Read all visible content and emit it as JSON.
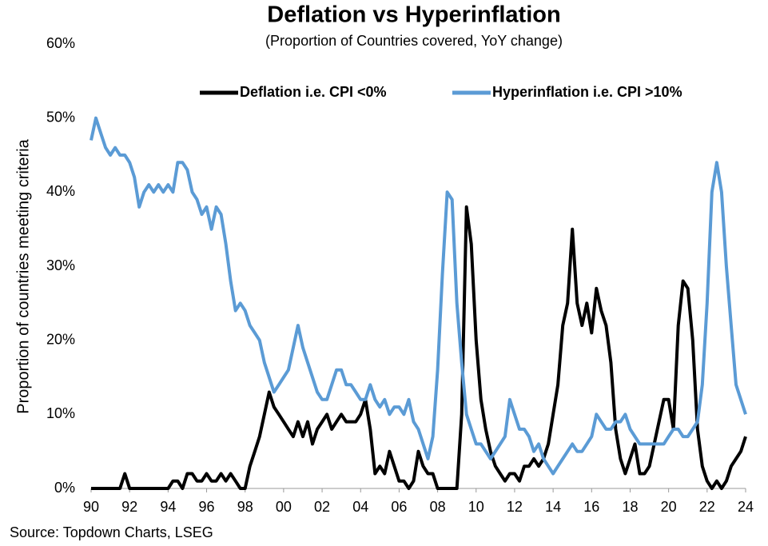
{
  "chart_data": {
    "type": "line",
    "title": "Deflation vs Hyperinflation",
    "subtitle": "(Proportion of Countries covered, YoY change)",
    "y_label": "Proportion of countries meeting criteria",
    "source": "Source: Topdown Charts, LSEG",
    "legend_position": "top",
    "x": [
      1990,
      1990.25,
      1990.5,
      1990.75,
      1991,
      1991.25,
      1991.5,
      1991.75,
      1992,
      1992.25,
      1992.5,
      1992.75,
      1993,
      1993.25,
      1993.5,
      1993.75,
      1994,
      1994.25,
      1994.5,
      1994.75,
      1995,
      1995.25,
      1995.5,
      1995.75,
      1996,
      1996.25,
      1996.5,
      1996.75,
      1997,
      1997.25,
      1997.5,
      1997.75,
      1998,
      1998.25,
      1998.5,
      1998.75,
      1999,
      1999.25,
      1999.5,
      1999.75,
      2000,
      2000.25,
      2000.5,
      2000.75,
      2001,
      2001.25,
      2001.5,
      2001.75,
      2002,
      2002.25,
      2002.5,
      2002.75,
      2003,
      2003.25,
      2003.5,
      2003.75,
      2004,
      2004.25,
      2004.5,
      2004.75,
      2005,
      2005.25,
      2005.5,
      2005.75,
      2006,
      2006.25,
      2006.5,
      2006.75,
      2007,
      2007.25,
      2007.5,
      2007.75,
      2008,
      2008.25,
      2008.5,
      2008.75,
      2009,
      2009.25,
      2009.5,
      2009.75,
      2010,
      2010.25,
      2010.5,
      2010.75,
      2011,
      2011.25,
      2011.5,
      2011.75,
      2012,
      2012.25,
      2012.5,
      2012.75,
      2013,
      2013.25,
      2013.5,
      2013.75,
      2014,
      2014.25,
      2014.5,
      2014.75,
      2015,
      2015.25,
      2015.5,
      2015.75,
      2016,
      2016.25,
      2016.5,
      2016.75,
      2017,
      2017.25,
      2017.5,
      2017.75,
      2018,
      2018.25,
      2018.5,
      2018.75,
      2019,
      2019.25,
      2019.5,
      2019.75,
      2020,
      2020.25,
      2020.5,
      2020.75,
      2021,
      2021.25,
      2021.5,
      2021.75,
      2022,
      2022.25,
      2022.5,
      2022.75,
      2023,
      2023.25,
      2023.5,
      2023.75,
      2024
    ],
    "series": [
      {
        "name": "Deflation i.e. CPI <0%",
        "color": "#000000",
        "values": [
          0,
          0,
          0,
          0,
          0,
          0,
          0,
          2,
          0,
          0,
          0,
          0,
          0,
          0,
          0,
          0,
          0,
          1,
          1,
          0,
          2,
          2,
          1,
          1,
          2,
          1,
          1,
          2,
          1,
          2,
          1,
          0,
          0,
          3,
          5,
          7,
          10,
          13,
          11,
          10,
          9,
          8,
          7,
          9,
          7,
          9,
          6,
          8,
          9,
          10,
          8,
          9,
          10,
          9,
          9,
          9,
          10,
          12,
          8,
          2,
          3,
          2,
          5,
          3,
          1,
          1,
          0,
          1,
          5,
          3,
          2,
          2,
          0,
          0,
          0,
          0,
          0,
          10,
          38,
          33,
          20,
          12,
          8,
          5,
          3,
          2,
          1,
          2,
          2,
          1,
          3,
          3,
          4,
          3,
          4,
          6,
          10,
          14,
          22,
          25,
          35,
          25,
          22,
          25,
          21,
          27,
          24,
          22,
          17,
          8,
          4,
          2,
          4,
          6,
          2,
          2,
          3,
          6,
          9,
          12,
          12,
          8,
          22,
          28,
          27,
          20,
          8,
          3,
          1,
          0,
          1,
          0,
          1,
          3,
          4,
          5,
          7
        ]
      },
      {
        "name": "Hyperinflation i.e. CPI >10%",
        "color": "#5b9bd5",
        "values": [
          47,
          50,
          48,
          46,
          45,
          46,
          45,
          45,
          44,
          42,
          38,
          40,
          41,
          40,
          41,
          40,
          41,
          40,
          44,
          44,
          43,
          40,
          39,
          37,
          38,
          35,
          38,
          37,
          33,
          28,
          24,
          25,
          24,
          22,
          21,
          20,
          17,
          15,
          13,
          14,
          15,
          16,
          19,
          22,
          19,
          17,
          15,
          13,
          12,
          12,
          14,
          16,
          16,
          14,
          14,
          13,
          12,
          12,
          14,
          12,
          11,
          12,
          10,
          11,
          11,
          10,
          12,
          9,
          8,
          6,
          4,
          7,
          16,
          29,
          40,
          39,
          25,
          17,
          10,
          8,
          6,
          6,
          5,
          4,
          5,
          6,
          7,
          12,
          10,
          8,
          8,
          7,
          5,
          6,
          4,
          3,
          2,
          3,
          4,
          5,
          6,
          5,
          5,
          6,
          7,
          10,
          9,
          8,
          8,
          9,
          9,
          10,
          8,
          7,
          6,
          6,
          6,
          6,
          6,
          6,
          7,
          8,
          8,
          7,
          7,
          8,
          9,
          14,
          25,
          40,
          44,
          40,
          30,
          22,
          14,
          12,
          10
        ]
      }
    ],
    "xlim": [
      1990,
      2024
    ],
    "xticks": [
      {
        "value": 1990,
        "label": "90"
      },
      {
        "value": 1992,
        "label": "92"
      },
      {
        "value": 1994,
        "label": "94"
      },
      {
        "value": 1996,
        "label": "96"
      },
      {
        "value": 1998,
        "label": "98"
      },
      {
        "value": 2000,
        "label": "00"
      },
      {
        "value": 2002,
        "label": "02"
      },
      {
        "value": 2004,
        "label": "04"
      },
      {
        "value": 2006,
        "label": "06"
      },
      {
        "value": 2008,
        "label": "08"
      },
      {
        "value": 2010,
        "label": "10"
      },
      {
        "value": 2012,
        "label": "12"
      },
      {
        "value": 2014,
        "label": "14"
      },
      {
        "value": 2016,
        "label": "16"
      },
      {
        "value": 2018,
        "label": "18"
      },
      {
        "value": 2020,
        "label": "20"
      },
      {
        "value": 2022,
        "label": "22"
      },
      {
        "value": 2024,
        "label": "24"
      }
    ],
    "ylim": [
      0,
      60
    ],
    "yticks": [
      {
        "value": 0,
        "label": "0%"
      },
      {
        "value": 10,
        "label": "10%"
      },
      {
        "value": 20,
        "label": "20%"
      },
      {
        "value": 30,
        "label": "30%"
      },
      {
        "value": 40,
        "label": "40%"
      },
      {
        "value": 50,
        "label": "50%"
      },
      {
        "value": 60,
        "label": "60%"
      }
    ],
    "grid": false
  }
}
